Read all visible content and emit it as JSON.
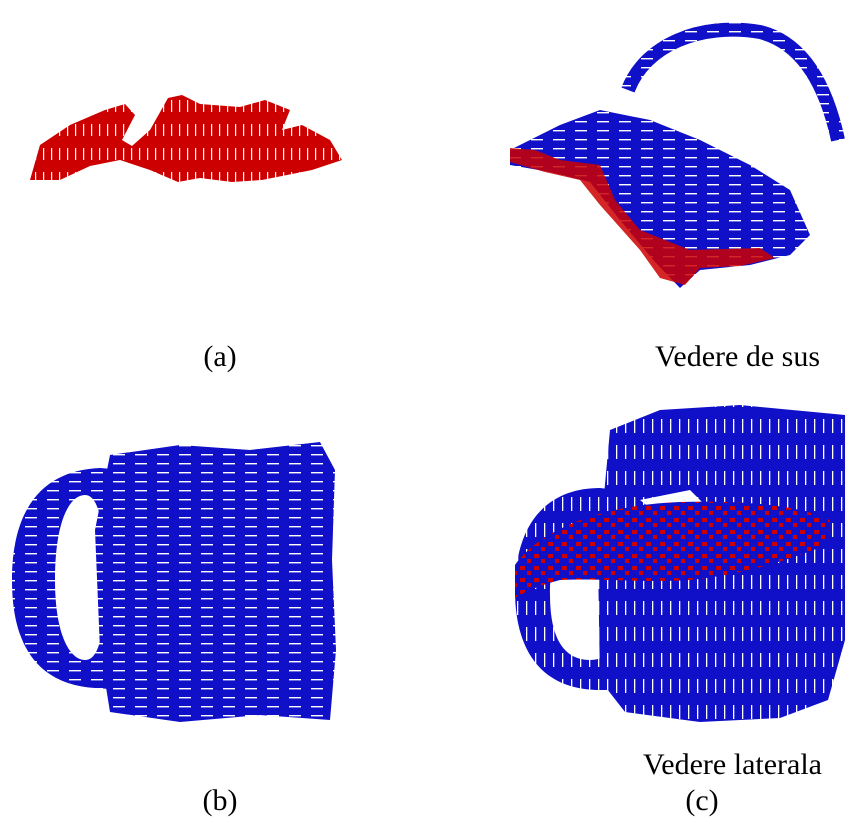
{
  "figure": {
    "panels": [
      {
        "caption": "(a)"
      },
      {
        "caption": "Vedere de sus"
      },
      {
        "caption": "(b)"
      },
      {
        "caption": "Vedere laterala"
      },
      {
        "caption": "(c)"
      }
    ]
  }
}
